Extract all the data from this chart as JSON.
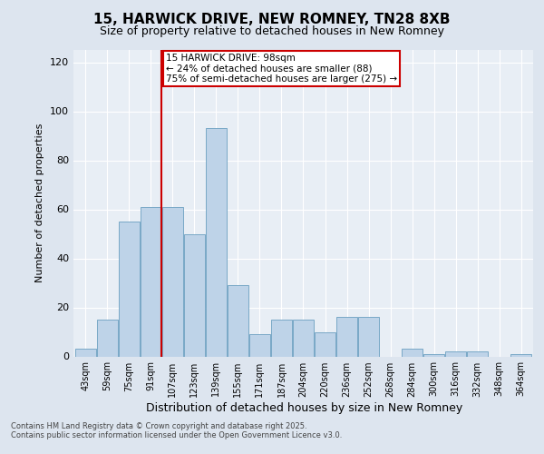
{
  "title1": "15, HARWICK DRIVE, NEW ROMNEY, TN28 8XB",
  "title2": "Size of property relative to detached houses in New Romney",
  "xlabel": "Distribution of detached houses by size in New Romney",
  "ylabel": "Number of detached properties",
  "categories": [
    "43sqm",
    "59sqm",
    "75sqm",
    "91sqm",
    "107sqm",
    "123sqm",
    "139sqm",
    "155sqm",
    "171sqm",
    "187sqm",
    "204sqm",
    "220sqm",
    "236sqm",
    "252sqm",
    "268sqm",
    "284sqm",
    "300sqm",
    "316sqm",
    "332sqm",
    "348sqm",
    "364sqm"
  ],
  "bar_values": [
    3,
    15,
    55,
    61,
    61,
    50,
    93,
    29,
    9,
    15,
    15,
    10,
    16,
    16,
    0,
    3,
    1,
    2,
    2,
    0,
    1
  ],
  "bar_color": "#bed3e8",
  "bar_edge_color": "#6a9fc0",
  "vline_pos": 3.5,
  "vline_color": "#cc0000",
  "annotation_line1": "15 HARWICK DRIVE: 98sqm",
  "annotation_line2": "← 24% of detached houses are smaller (88)",
  "annotation_line3": "75% of semi-detached houses are larger (275) →",
  "annotation_box_color": "#ffffff",
  "annotation_box_edge_color": "#cc0000",
  "ylim": [
    0,
    125
  ],
  "yticks": [
    0,
    20,
    40,
    60,
    80,
    100,
    120
  ],
  "footer": "Contains HM Land Registry data © Crown copyright and database right 2025.\nContains public sector information licensed under the Open Government Licence v3.0.",
  "bg_color": "#dde5ef",
  "plot_bg_color": "#e8eef5",
  "grid_color": "#ffffff",
  "title1_fontsize": 11,
  "title2_fontsize": 9,
  "xlabel_fontsize": 9,
  "ylabel_fontsize": 8,
  "xtick_fontsize": 7,
  "ytick_fontsize": 8,
  "footer_fontsize": 6,
  "annotation_fontsize": 7.5
}
